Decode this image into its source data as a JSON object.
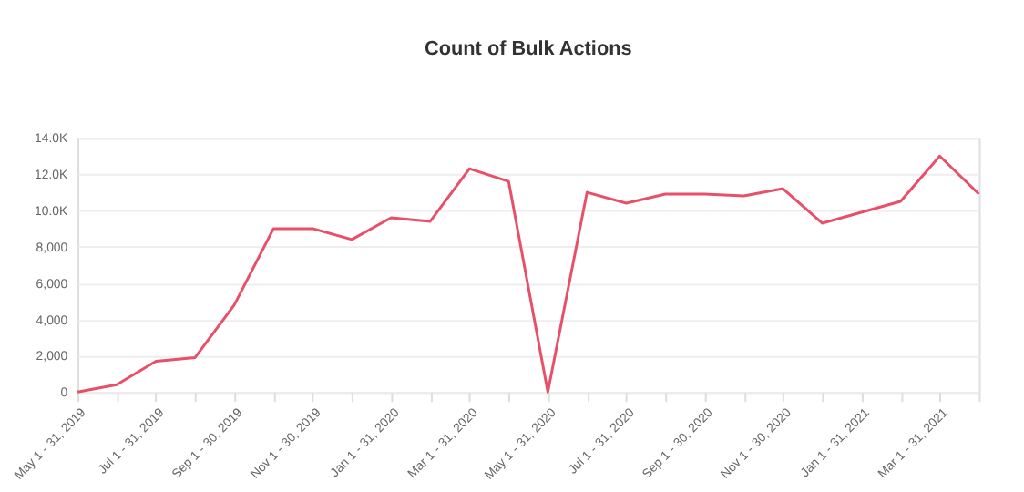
{
  "chart_data": {
    "type": "line",
    "title": "Count of Bulk Actions",
    "categories": [
      "May 1 - 31, 2019",
      null,
      "Jul 1 - 31, 2019",
      null,
      "Sep 1 - 30, 2019",
      null,
      "Nov 1 - 30, 2019",
      null,
      "Jan 1 - 31, 2020",
      null,
      "Mar 1 - 31, 2020",
      null,
      "May 1 - 31, 2020",
      null,
      "Jul 1 - 31, 2020",
      null,
      "Sep 1 - 30, 2020",
      null,
      "Nov 1 - 30, 2020",
      null,
      "Jan 1 - 31, 2021",
      null,
      "Mar 1 - 31, 2021",
      null
    ],
    "series": [
      {
        "color": "#e8506a",
        "values": [
          0,
          400,
          1700,
          1900,
          4800,
          9000,
          9000,
          8400,
          9600,
          9400,
          12300,
          11600,
          0,
          11000,
          10400,
          10900,
          10900,
          10800,
          11200,
          9300,
          9900,
          10500,
          13000,
          10900
        ]
      }
    ],
    "ylim": [
      0,
      14000
    ],
    "yticks": [
      0,
      {
        "value": 2000,
        "label": "2,000"
      },
      {
        "value": 4000,
        "label": "4,000"
      },
      {
        "value": 6000,
        "label": "6,000"
      },
      {
        "value": 8000,
        "label": "8,000"
      },
      {
        "value": 10000,
        "label": "10.0K"
      },
      {
        "value": 12000,
        "label": "12.0K"
      },
      {
        "value": 14000,
        "label": "14.0K"
      }
    ],
    "grid": "y",
    "legend": false,
    "marker": "none",
    "line_style": "solid"
  }
}
